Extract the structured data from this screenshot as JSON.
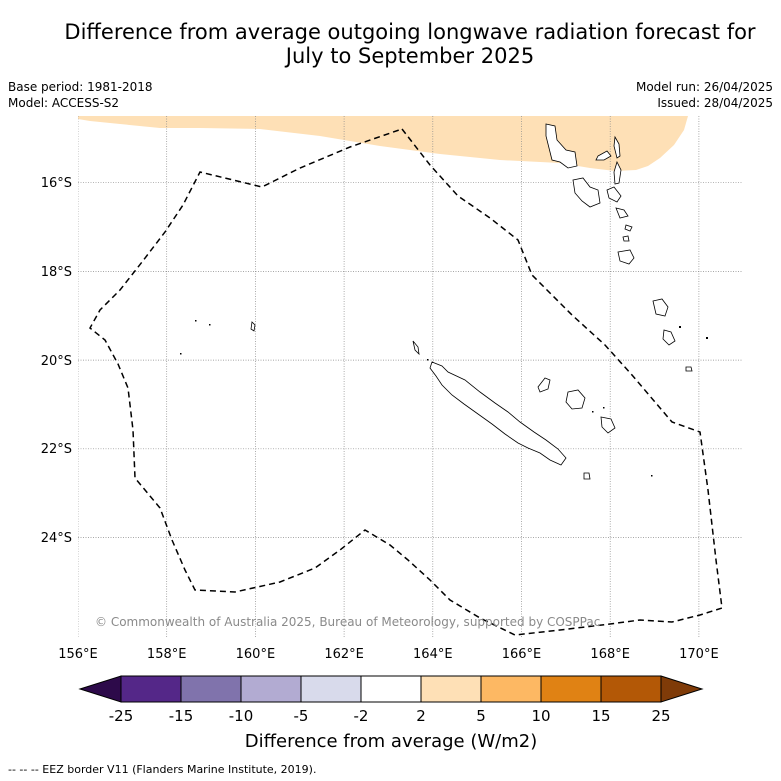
{
  "title_line1": "Difference from average outgoing longwave radiation forecast for",
  "title_line2": "July to September 2025",
  "base_period": "Base period: 1981-2018",
  "model": "Model: ACCESS-S2",
  "model_run": "Model run: 26/04/2025",
  "issued": "Issued: 28/04/2025",
  "credit": "© Commonwealth of Australia 2025, Bureau of Meteorology, supported by COSPPac",
  "lon_ticks": [
    "156°E",
    "158°E",
    "160°E",
    "162°E",
    "164°E",
    "166°E",
    "168°E",
    "170°E"
  ],
  "lat_ticks": [
    "16°S",
    "18°S",
    "20°S",
    "22°S",
    "24°S"
  ],
  "colorbar": {
    "title": "Difference from average (W/m2)",
    "labels": [
      "-25",
      "-15",
      "-10",
      "-5",
      "-2",
      "2",
      "5",
      "10",
      "15",
      "25"
    ],
    "colors": {
      "under": "#2d0a4a",
      "bins": [
        "#542788",
        "#8073ac",
        "#b2abd2",
        "#d8daeb",
        "#ffffff",
        "#fee0b6",
        "#fdb863",
        "#e08214",
        "#b35806"
      ],
      "over": "#7f3b08"
    }
  },
  "legend_footer": "--  --  -- EEZ border V11 (Flanders Marine Institute, 2019).",
  "map": {
    "region": "New Caledonia",
    "lon_range": [
      156,
      171
    ],
    "lat_range": [
      -26.2,
      -14.5
    ],
    "shaded_area": {
      "category": "2 to 5",
      "color": "#fee0b6"
    }
  }
}
